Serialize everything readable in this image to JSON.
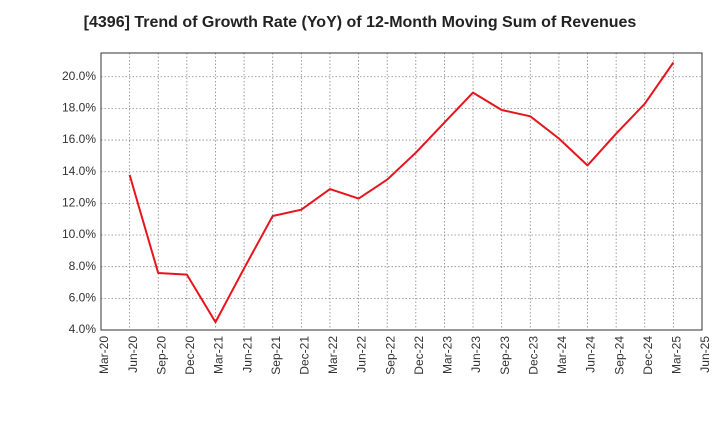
{
  "chart_data": {
    "type": "line",
    "title": "[4396]  Trend of Growth Rate (YoY) of 12-Month Moving Sum of Revenues",
    "xlabel": "",
    "ylabel": "",
    "x_ticks": [
      "Mar-20",
      "Jun-20",
      "Sep-20",
      "Dec-20",
      "Mar-21",
      "Jun-21",
      "Sep-21",
      "Dec-21",
      "Mar-22",
      "Jun-22",
      "Sep-22",
      "Dec-22",
      "Mar-23",
      "Jun-23",
      "Sep-23",
      "Dec-23",
      "Mar-24",
      "Jun-24",
      "Sep-24",
      "Dec-24",
      "Mar-25",
      "Jun-25"
    ],
    "y_ticks": [
      "4.0%",
      "6.0%",
      "8.0%",
      "10.0%",
      "12.0%",
      "14.0%",
      "16.0%",
      "18.0%",
      "20.0%"
    ],
    "ylim": [
      4.0,
      21.5
    ],
    "grid": true,
    "series": [
      {
        "color": "#e8141c",
        "x": [
          "Jun-20",
          "Sep-20",
          "Dec-20",
          "Mar-21",
          "Jun-21",
          "Sep-21",
          "Dec-21",
          "Mar-22",
          "Jun-22",
          "Sep-22",
          "Dec-22",
          "Mar-23",
          "Jun-23",
          "Sep-23",
          "Dec-23",
          "Mar-24",
          "Jun-24",
          "Sep-24",
          "Dec-24",
          "Mar-25"
        ],
        "values": [
          13.8,
          7.6,
          7.5,
          4.5,
          7.9,
          11.2,
          11.6,
          12.9,
          12.3,
          13.5,
          15.2,
          17.1,
          19.0,
          17.9,
          17.5,
          16.1,
          14.4,
          16.4,
          18.3,
          20.9
        ]
      }
    ]
  }
}
